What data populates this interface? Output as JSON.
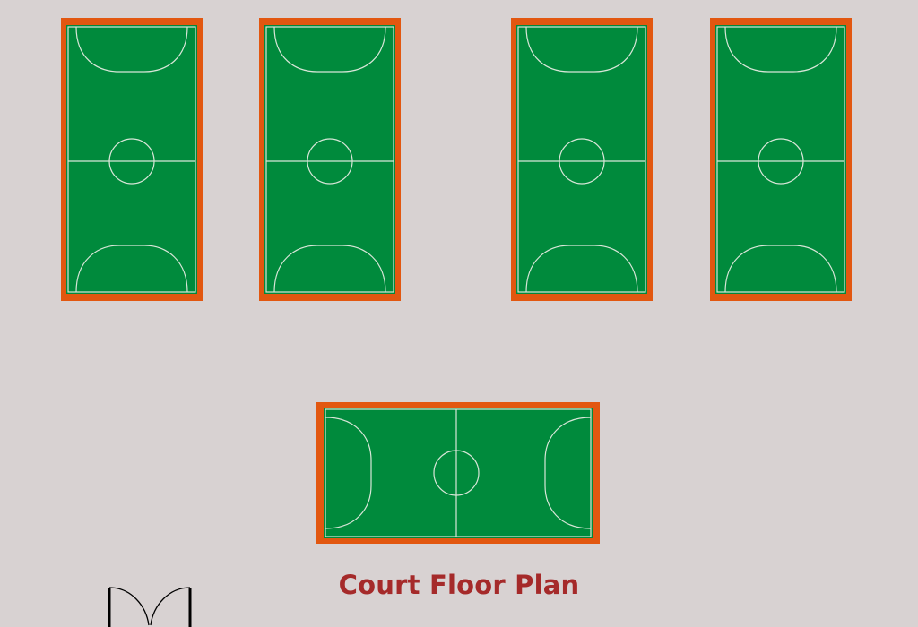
{
  "title": "Court Floor Plan",
  "colors": {
    "background": "#d8d2d2",
    "court_border": "#e25710",
    "court_surface": "#008a3c",
    "court_lines": "#d8e6d8",
    "title": "#a52a2a",
    "door": "#000000"
  },
  "courts": [
    {
      "orientation": "vertical"
    },
    {
      "orientation": "vertical"
    },
    {
      "orientation": "vertical"
    },
    {
      "orientation": "vertical"
    },
    {
      "orientation": "horizontal"
    }
  ],
  "icons": [
    "double-door-icon"
  ]
}
